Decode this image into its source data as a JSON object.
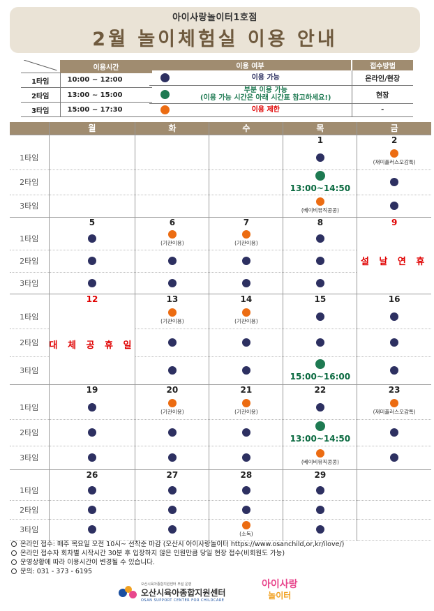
{
  "header": {
    "subtitle": "아이사랑놀이터1호점",
    "title": "2월 놀이체험실 이용 안내"
  },
  "schedule": {
    "header": "이용시간",
    "rows": [
      {
        "name": "1타임",
        "time": "10:00 ~ 12:00"
      },
      {
        "name": "2타임",
        "time": "13:00 ~ 15:00"
      },
      {
        "name": "3타임",
        "time": "15:00 ~ 17:30"
      }
    ]
  },
  "legend": {
    "header_status": "이용 여부",
    "header_method": "접수방법",
    "rows": [
      {
        "color": "#2d3061",
        "text": "이용 가능",
        "text2": "",
        "text_color": "#2d3061",
        "method": "온라인/현장"
      },
      {
        "color": "#1e7a52",
        "text": "부분 이용 가능",
        "text2": "(이용 가능 시간은 아래 시간표 참고하세요!)",
        "text_color": "#1e7a52",
        "method": "현장"
      },
      {
        "color": "#ec6c12",
        "text": "이용 제한",
        "text2": "",
        "text_color": "#e00000",
        "method": "-"
      }
    ]
  },
  "calendar": {
    "days": [
      "월",
      "화",
      "수",
      "목",
      "금"
    ],
    "slot_labels": [
      "1타임",
      "2타임",
      "3타임"
    ],
    "weeks": [
      {
        "dates": [
          "",
          "",
          "",
          "1",
          "2"
        ],
        "red": [],
        "slots": [
          [
            {
              "t": "e"
            },
            {
              "t": "e"
            },
            {
              "t": "e"
            },
            {
              "t": "n"
            },
            {
              "t": "o",
              "note": "(재미플러스오감톡)"
            }
          ],
          [
            {
              "t": "e"
            },
            {
              "t": "e"
            },
            {
              "t": "e"
            },
            {
              "t": "g",
              "time": "13:00~14:50"
            },
            {
              "t": "n"
            }
          ],
          [
            {
              "t": "e"
            },
            {
              "t": "e"
            },
            {
              "t": "e"
            },
            {
              "t": "o",
              "note": "(베이비뮤직콩콩)"
            },
            {
              "t": "n"
            }
          ]
        ]
      },
      {
        "dates": [
          "5",
          "6",
          "7",
          "8",
          "9"
        ],
        "red": [
          4
        ],
        "holiday_col": 4,
        "holiday_text": "설 날 연 휴",
        "slots": [
          [
            {
              "t": "n"
            },
            {
              "t": "o",
              "note": "(기관이용)"
            },
            {
              "t": "o",
              "note": "(기관이용)"
            },
            {
              "t": "n"
            },
            {
              "t": "h"
            }
          ],
          [
            {
              "t": "n"
            },
            {
              "t": "n"
            },
            {
              "t": "n"
            },
            {
              "t": "n"
            },
            {
              "t": "h"
            }
          ],
          [
            {
              "t": "n"
            },
            {
              "t": "n"
            },
            {
              "t": "n"
            },
            {
              "t": "n"
            },
            {
              "t": "h"
            }
          ]
        ]
      },
      {
        "dates": [
          "12",
          "13",
          "14",
          "15",
          "16"
        ],
        "red": [
          0
        ],
        "holiday_col": 0,
        "holiday_text": "대 체 공 휴 일",
        "slots": [
          [
            {
              "t": "h"
            },
            {
              "t": "o",
              "note": "(기관이용)"
            },
            {
              "t": "o",
              "note": "(기관이용)"
            },
            {
              "t": "n"
            },
            {
              "t": "n"
            }
          ],
          [
            {
              "t": "h"
            },
            {
              "t": "n"
            },
            {
              "t": "n"
            },
            {
              "t": "n"
            },
            {
              "t": "n"
            }
          ],
          [
            {
              "t": "h"
            },
            {
              "t": "n"
            },
            {
              "t": "n"
            },
            {
              "t": "g",
              "time": "15:00~16:00"
            },
            {
              "t": "n"
            }
          ]
        ]
      },
      {
        "dates": [
          "19",
          "20",
          "21",
          "22",
          "23"
        ],
        "red": [],
        "slots": [
          [
            {
              "t": "n"
            },
            {
              "t": "o",
              "note": "(기관이용)"
            },
            {
              "t": "o",
              "note": "(기관이용)"
            },
            {
              "t": "n"
            },
            {
              "t": "o",
              "note": "(재미플러스오감톡)"
            }
          ],
          [
            {
              "t": "n"
            },
            {
              "t": "n"
            },
            {
              "t": "n"
            },
            {
              "t": "g",
              "time": "13:00~14:50"
            },
            {
              "t": "n"
            }
          ],
          [
            {
              "t": "n"
            },
            {
              "t": "n"
            },
            {
              "t": "n"
            },
            {
              "t": "o",
              "note": "(베이비뮤직콩콩)"
            },
            {
              "t": "n"
            }
          ]
        ]
      },
      {
        "dates": [
          "26",
          "27",
          "28",
          "29",
          ""
        ],
        "red": [],
        "slots": [
          [
            {
              "t": "n"
            },
            {
              "t": "n"
            },
            {
              "t": "n"
            },
            {
              "t": "n"
            },
            {
              "t": "e"
            }
          ],
          [
            {
              "t": "n"
            },
            {
              "t": "n"
            },
            {
              "t": "n"
            },
            {
              "t": "n"
            },
            {
              "t": "e"
            }
          ],
          [
            {
              "t": "n"
            },
            {
              "t": "n"
            },
            {
              "t": "o",
              "note": "(소독)"
            },
            {
              "t": "n"
            },
            {
              "t": "e"
            }
          ]
        ]
      }
    ]
  },
  "notes": [
    "온라인 접수: 매주 목요일 오전 10시~ 선착순 마감 (오산시 아이사랑놀이터 https://www.osanchild,or,kr/ilove/)",
    "온라인 접수자 회차별 시작시간 30분 후 입장하지 않은 인원만큼 당일 현장 접수(비회원도 가능)",
    "운영상황에 따라 이용시간이 변경될 수 있습니다.",
    "문의: 031 - 373 - 6195"
  ],
  "footer": {
    "org_small": "오산시육아종합지원센터 부설 운영",
    "org_name": "오산시육아종합지원센터",
    "org_eng": "OSAN SUPPORT CENTER FOR CHILDCARE",
    "brand_line1": "아이사랑",
    "brand_line2": "놀이터"
  },
  "colors": {
    "available": "#2d3061",
    "partial": "#1e7a52",
    "restricted": "#ec6c12",
    "header_brown": "#a08c70"
  }
}
